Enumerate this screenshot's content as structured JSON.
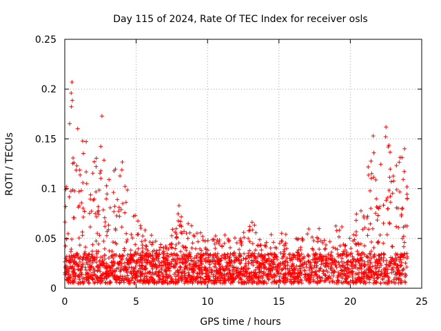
{
  "chart_data": {
    "type": "scatter",
    "title": "Day 115 of 2024, Rate Of TEC Index for receiver osls",
    "xlabel": "GPS time / hours",
    "ylabel": "ROTI / TECUs",
    "xlim": [
      0,
      25
    ],
    "ylim": [
      0,
      0.25
    ],
    "x_ticks": [
      "0",
      "5",
      "10",
      "15",
      "20",
      "25"
    ],
    "y_ticks": [
      "0",
      "0.05",
      "0.1",
      "0.15",
      "0.2",
      "0.25"
    ],
    "x_tick_values": [
      0,
      5,
      10,
      15,
      20,
      25
    ],
    "y_tick_values": [
      0,
      0.05,
      0.1,
      0.15,
      0.2,
      0.25
    ],
    "grid": true,
    "marker": "plus",
    "color": "#ff0000",
    "series": [
      {
        "name": "ROTI",
        "x_range_hours": [
          0,
          24
        ],
        "baseline_band": [
          0.005,
          0.035
        ],
        "envelope": [
          {
            "x": 0.0,
            "ymax": 0.12
          },
          {
            "x": 0.5,
            "ymax": 0.2
          },
          {
            "x": 1.0,
            "ymax": 0.165
          },
          {
            "x": 2.0,
            "ymax": 0.13
          },
          {
            "x": 2.5,
            "ymax": 0.173
          },
          {
            "x": 3.0,
            "ymax": 0.12
          },
          {
            "x": 4.0,
            "ymax": 0.13
          },
          {
            "x": 5.0,
            "ymax": 0.07
          },
          {
            "x": 6.0,
            "ymax": 0.055
          },
          {
            "x": 7.0,
            "ymax": 0.04
          },
          {
            "x": 8.0,
            "ymax": 0.08
          },
          {
            "x": 9.0,
            "ymax": 0.065
          },
          {
            "x": 10.0,
            "ymax": 0.05
          },
          {
            "x": 11.0,
            "ymax": 0.06
          },
          {
            "x": 12.0,
            "ymax": 0.05
          },
          {
            "x": 13.0,
            "ymax": 0.07
          },
          {
            "x": 14.0,
            "ymax": 0.05
          },
          {
            "x": 15.0,
            "ymax": 0.06
          },
          {
            "x": 16.0,
            "ymax": 0.05
          },
          {
            "x": 17.0,
            "ymax": 0.06
          },
          {
            "x": 18.0,
            "ymax": 0.06
          },
          {
            "x": 19.0,
            "ymax": 0.065
          },
          {
            "x": 20.0,
            "ymax": 0.06
          },
          {
            "x": 21.0,
            "ymax": 0.1
          },
          {
            "x": 21.5,
            "ymax": 0.15
          },
          {
            "x": 22.0,
            "ymax": 0.12
          },
          {
            "x": 22.5,
            "ymax": 0.162
          },
          {
            "x": 23.0,
            "ymax": 0.12
          },
          {
            "x": 23.5,
            "ymax": 0.14
          },
          {
            "x": 24.0,
            "ymax": 0.125
          }
        ],
        "notable_points": [
          {
            "x": 0.5,
            "y": 0.207
          },
          {
            "x": 0.45,
            "y": 0.196
          },
          {
            "x": 2.6,
            "y": 0.173
          },
          {
            "x": 8.0,
            "y": 0.083
          },
          {
            "x": 22.5,
            "y": 0.162
          },
          {
            "x": 21.6,
            "y": 0.153
          },
          {
            "x": 23.8,
            "y": 0.14
          }
        ]
      }
    ]
  }
}
